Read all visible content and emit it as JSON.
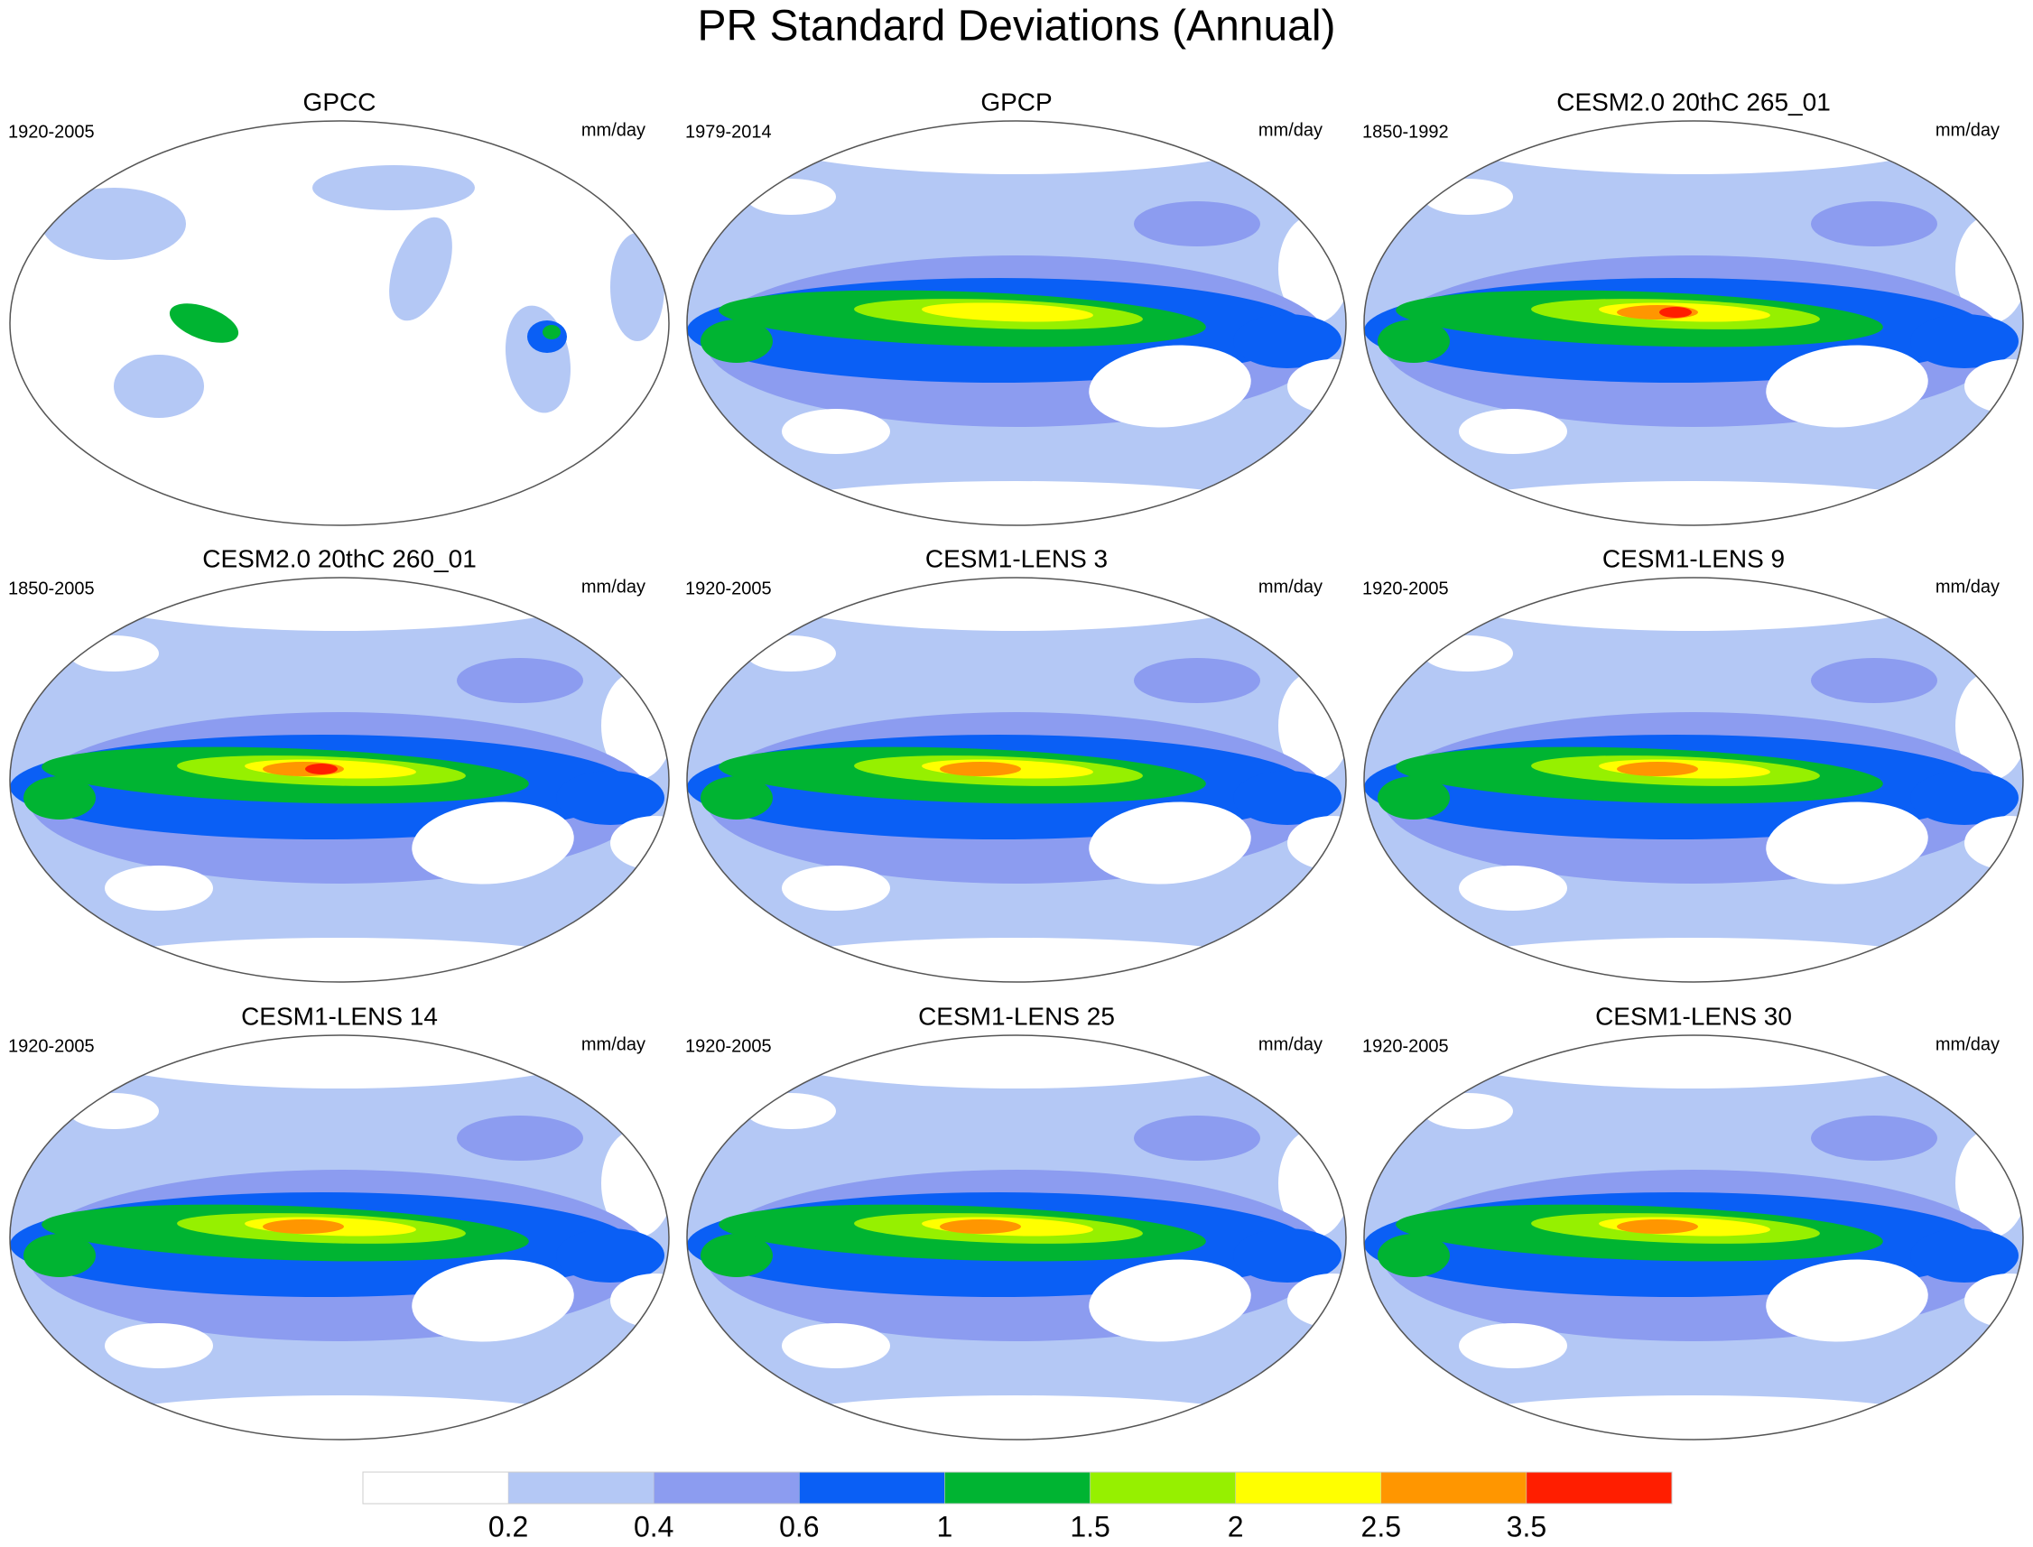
{
  "title": "PR Standard Deviations (Annual)",
  "panels": [
    {
      "title": "GPCC",
      "period": "1920-2005",
      "units": "mm/day"
    },
    {
      "title": "GPCP",
      "period": "1979-2014",
      "units": "mm/day"
    },
    {
      "title": "CESM2.0 20thC 265_01",
      "period": "1850-1992",
      "units": "mm/day"
    },
    {
      "title": "CESM2.0 20thC 260_01",
      "period": "1850-2005",
      "units": "mm/day"
    },
    {
      "title": "CESM1-LENS 3",
      "period": "1920-2005",
      "units": "mm/day"
    },
    {
      "title": "CESM1-LENS 9",
      "period": "1920-2005",
      "units": "mm/day"
    },
    {
      "title": "CESM1-LENS 14",
      "period": "1920-2005",
      "units": "mm/day"
    },
    {
      "title": "CESM1-LENS 25",
      "period": "1920-2005",
      "units": "mm/day"
    },
    {
      "title": "CESM1-LENS 30",
      "period": "1920-2005",
      "units": "mm/day"
    }
  ],
  "colorbar": {
    "levels": [
      0.2,
      0.4,
      0.6,
      1,
      1.5,
      2,
      2.5,
      3.5
    ],
    "colors": [
      "#ffffff",
      "#b4c8f5",
      "#8c9cf0",
      "#0a5ff5",
      "#00b432",
      "#96f000",
      "#ffff00",
      "#ff9600",
      "#ff1e00"
    ]
  }
}
